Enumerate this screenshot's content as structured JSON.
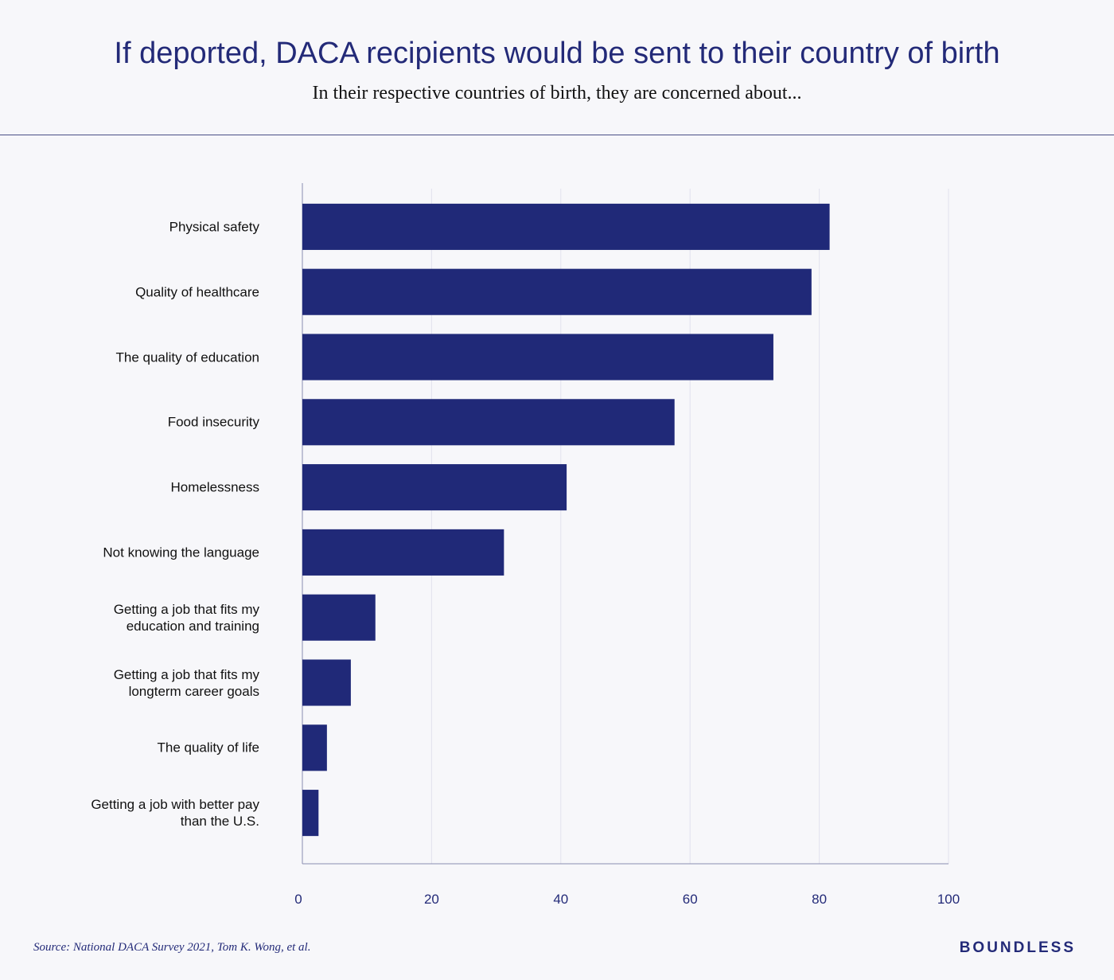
{
  "chart_data": {
    "type": "bar",
    "orientation": "horizontal",
    "title": "If deported, DACA recipients would be sent to their country of birth",
    "subtitle": "In their respective countries of birth, they are concerned about...",
    "categories": [
      "Physical safety",
      "Quality of healthcare",
      "The quality of education",
      "Food insecurity",
      "Homelessness",
      "Not knowing the language",
      "Getting a job that fits my\neducation and training",
      "Getting a job that fits my\nlongterm career goals",
      "The quality of life",
      "Getting a job with better pay\nthan the U.S."
    ],
    "values": [
      81.6,
      78.8,
      72.9,
      57.6,
      40.9,
      31.2,
      11.3,
      7.5,
      3.8,
      2.5
    ],
    "color": "#202978",
    "xlim": [
      0,
      100
    ],
    "xticks": [
      0,
      20,
      40,
      60,
      80,
      100
    ],
    "grid": true,
    "source": "Source: National DACA Survey 2021, Tom K. Wong, et al.",
    "brand": "BOUNDLESS"
  }
}
